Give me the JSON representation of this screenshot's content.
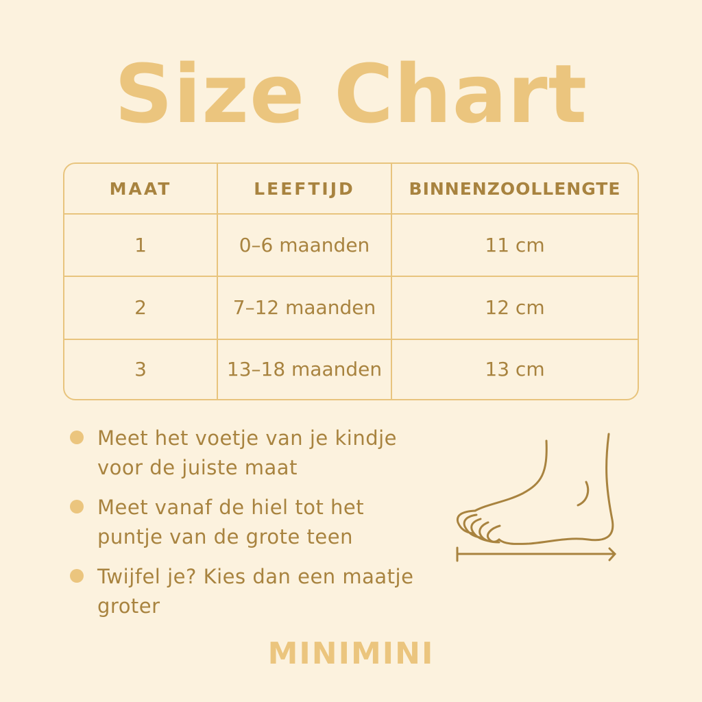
{
  "title": "Size Chart",
  "table": {
    "headers": [
      "MAAT",
      "LEEFTIJD",
      "BINNENZOOLLENGTE"
    ],
    "rows": [
      [
        "1",
        "0–6 maanden",
        "11 cm"
      ],
      [
        "2",
        "7–12 maanden",
        "12 cm"
      ],
      [
        "3",
        "13–18 maanden",
        "13 cm"
      ]
    ]
  },
  "tips": [
    "Meet het voetje van je kindje voor de juiste maat",
    "Meet vanaf de hiel tot het puntje van de grote teen",
    "Twijfel je? Kies dan een maatje groter"
  ],
  "illustration": "foot-measure-icon",
  "brand": "MINIMINI",
  "colors": {
    "background": "#fcf2de",
    "accent": "#ebc57e",
    "text": "#a8833f"
  }
}
